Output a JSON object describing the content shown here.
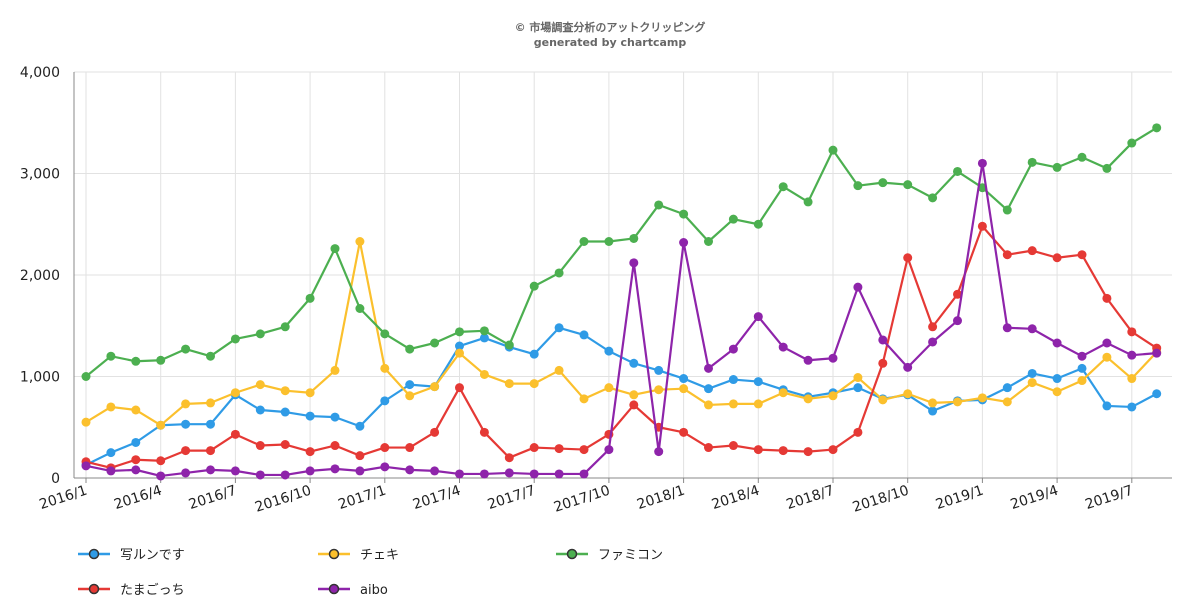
{
  "header": {
    "line1": "© 市場調査分析のアットクリッピング",
    "line2": "generated by chartcamp"
  },
  "chart_data": {
    "type": "line",
    "title": "",
    "xlabel": "",
    "ylabel": "",
    "ylim": [
      0,
      4000
    ],
    "yticks": [
      0,
      1000,
      2000,
      3000,
      4000
    ],
    "ytick_labels": [
      "0",
      "1,000",
      "2,000",
      "3,000",
      "4,000"
    ],
    "grid": true,
    "legend_position": "bottom",
    "x": [
      "2016/1",
      "2016/2",
      "2016/3",
      "2016/4",
      "2016/5",
      "2016/6",
      "2016/7",
      "2016/8",
      "2016/9",
      "2016/10",
      "2016/11",
      "2016/12",
      "2017/1",
      "2017/2",
      "2017/3",
      "2017/4",
      "2017/5",
      "2017/6",
      "2017/7",
      "2017/8",
      "2017/9",
      "2017/10",
      "2017/11",
      "2017/12",
      "2018/1",
      "2018/2",
      "2018/3",
      "2018/4",
      "2018/5",
      "2018/6",
      "2018/7",
      "2018/8",
      "2018/9",
      "2018/10",
      "2018/11",
      "2018/12",
      "2019/1",
      "2019/2",
      "2019/3",
      "2019/4",
      "2019/5",
      "2019/6",
      "2019/7",
      "2019/8"
    ],
    "x_tick_labels": [
      "2016/1",
      "2016/4",
      "2016/7",
      "2016/10",
      "2017/1",
      "2017/4",
      "2017/7",
      "2017/10",
      "2018/1",
      "2018/4",
      "2018/7",
      "2018/10",
      "2019/1",
      "2019/4",
      "2019/7"
    ],
    "series": [
      {
        "name": "写ルンです",
        "color": "#2f9be6",
        "values": [
          130,
          250,
          350,
          520,
          530,
          530,
          820,
          670,
          650,
          610,
          600,
          510,
          760,
          920,
          900,
          1300,
          1380,
          1290,
          1220,
          1480,
          1410,
          1250,
          1130,
          1060,
          980,
          880,
          970,
          950,
          870,
          800,
          840,
          890,
          780,
          820,
          660,
          760,
          770,
          890,
          1030,
          980,
          1080,
          710,
          700,
          830
        ]
      },
      {
        "name": "チェキ",
        "color": "#fbc02d",
        "values": [
          550,
          700,
          670,
          520,
          730,
          740,
          840,
          920,
          860,
          840,
          1060,
          2330,
          1080,
          810,
          900,
          1230,
          1020,
          930,
          930,
          1060,
          780,
          890,
          820,
          870,
          880,
          720,
          730,
          730,
          840,
          780,
          810,
          990,
          770,
          830,
          740,
          750,
          790,
          750,
          940,
          850,
          960,
          1190,
          980,
          1240
        ]
      },
      {
        "name": "ファミコン",
        "color": "#4caf50",
        "values": [
          1000,
          1200,
          1150,
          1160,
          1270,
          1200,
          1370,
          1420,
          1490,
          1770,
          2260,
          1670,
          1420,
          1270,
          1330,
          1440,
          1450,
          1310,
          1890,
          2020,
          2330,
          2330,
          2360,
          2690,
          2600,
          2330,
          2550,
          2500,
          2870,
          2720,
          3230,
          2880,
          2910,
          2890,
          2760,
          3020,
          2860,
          2640,
          3110,
          3060,
          3160,
          3050,
          3300,
          3450
        ]
      },
      {
        "name": "たまごっち",
        "color": "#e53935",
        "values": [
          160,
          100,
          180,
          170,
          270,
          270,
          430,
          320,
          330,
          260,
          320,
          220,
          300,
          300,
          450,
          890,
          450,
          200,
          300,
          290,
          280,
          430,
          720,
          500,
          450,
          300,
          320,
          280,
          270,
          260,
          280,
          450,
          1130,
          2170,
          1490,
          1810,
          2480,
          2200,
          2240,
          2170,
          2200,
          1770,
          1440,
          1280
        ]
      },
      {
        "name": "aibo",
        "color": "#8e24aa",
        "values": [
          120,
          70,
          80,
          20,
          50,
          80,
          70,
          30,
          30,
          70,
          90,
          70,
          110,
          80,
          70,
          40,
          40,
          50,
          40,
          40,
          40,
          280,
          2120,
          260,
          2320,
          1080,
          1270,
          1590,
          1290,
          1160,
          1180,
          1880,
          1360,
          1090,
          1340,
          1550,
          3100,
          1480,
          1470,
          1330,
          1200,
          1330,
          1210,
          1230
        ]
      }
    ]
  }
}
